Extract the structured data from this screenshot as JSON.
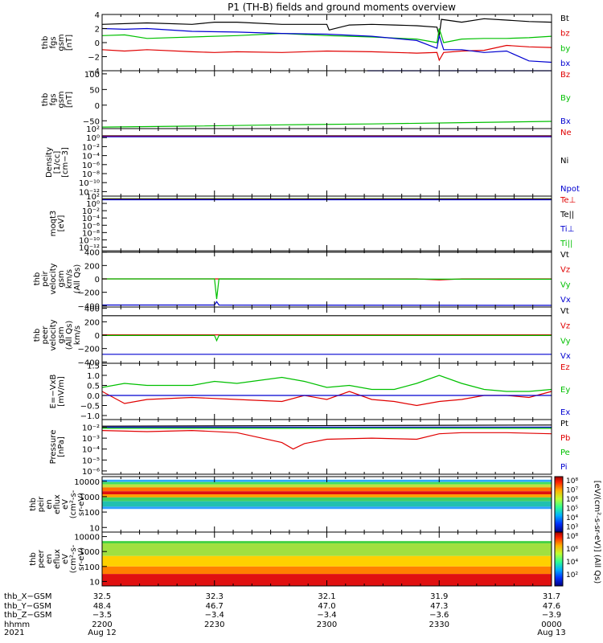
{
  "title": "P1 (TH-B) fields and ground moments overview",
  "chart_data": [
    {
      "type": "line",
      "ylabel": [
        "thb",
        "fgs",
        "gsm",
        "[nT]"
      ],
      "ylim": [
        -4,
        4
      ],
      "yticks": [
        [
          "4",
          4
        ],
        [
          "2",
          2
        ],
        [
          "0",
          0
        ],
        [
          "−2",
          -2
        ],
        [
          "−4",
          -4
        ]
      ],
      "legend": [
        {
          "name": "Bt",
          "color": "#000000"
        },
        {
          "name": "bz",
          "color": "#e00000"
        },
        {
          "name": "by",
          "color": "#00c000"
        },
        {
          "name": "bx",
          "color": "#0000d0"
        }
      ],
      "series": [
        {
          "name": "Bt",
          "color": "#000000",
          "x": [
            0,
            20,
            40,
            50,
            60,
            80,
            100,
            101,
            110,
            120,
            130,
            140,
            149,
            150,
            151,
            160,
            170,
            180,
            190,
            200
          ],
          "y": [
            2.6,
            2.8,
            2.6,
            2.9,
            2.9,
            2.6,
            2.6,
            1.8,
            2.5,
            2.6,
            2.5,
            2.4,
            2.2,
            1.0,
            3.3,
            2.9,
            3.4,
            3.2,
            3.0,
            2.9
          ]
        },
        {
          "name": "bz",
          "color": "#e00000",
          "x": [
            0,
            10,
            20,
            40,
            50,
            60,
            80,
            100,
            120,
            140,
            149,
            150,
            152,
            160,
            170,
            180,
            190,
            200
          ],
          "y": [
            -1.0,
            -1.2,
            -1.0,
            -1.3,
            -1.4,
            -1.3,
            -1.4,
            -1.2,
            -1.3,
            -1.5,
            -1.4,
            -2.5,
            -1.4,
            -1.2,
            -1.1,
            -0.4,
            -0.6,
            -0.7
          ]
        },
        {
          "name": "by",
          "color": "#00c000",
          "x": [
            0,
            10,
            20,
            40,
            60,
            80,
            100,
            120,
            140,
            149,
            150,
            152,
            160,
            170,
            180,
            190,
            200
          ],
          "y": [
            1.0,
            1.1,
            0.6,
            0.8,
            1.0,
            1.3,
            1.0,
            0.8,
            0.5,
            0.0,
            2.0,
            0.0,
            0.5,
            0.6,
            0.6,
            0.7,
            0.9
          ]
        },
        {
          "name": "bx",
          "color": "#0000d0",
          "x": [
            0,
            10,
            20,
            40,
            60,
            80,
            100,
            120,
            140,
            149,
            150,
            152,
            160,
            170,
            180,
            190,
            200
          ],
          "y": [
            2.0,
            1.9,
            2.0,
            1.6,
            1.5,
            1.3,
            1.2,
            0.9,
            0.3,
            -0.8,
            1.0,
            -1.0,
            -1.0,
            -1.4,
            -1.2,
            -2.6,
            -2.8
          ]
        }
      ]
    },
    {
      "type": "line",
      "ylabel": [
        "thb",
        "fgs",
        "gsm",
        "[nT]"
      ],
      "ylim": [
        -75,
        110
      ],
      "yticks": [
        [
          "100",
          100
        ],
        [
          "50",
          50
        ],
        [
          "0",
          0
        ],
        [
          "−50",
          -50
        ]
      ],
      "legend": [
        {
          "name": "Bz",
          "color": "#e00000"
        },
        {
          "name": "By",
          "color": "#00c000"
        },
        {
          "name": "Bx",
          "color": "#0000d0"
        }
      ],
      "series": [
        {
          "name": "Bx",
          "color": "#0000d0",
          "x": [
            118,
            200
          ],
          "y": [
            110,
            110
          ]
        },
        {
          "name": "By",
          "color": "#00c000",
          "x": [
            0,
            40,
            80,
            120,
            160,
            200
          ],
          "y": [
            -70,
            -67,
            -63,
            -60,
            -56,
            -52
          ]
        }
      ]
    },
    {
      "type": "line",
      "ylabel": [
        "Density",
        "[1/cc]",
        "[cm−3]"
      ],
      "ylim": [
        -13,
        2
      ],
      "log": true,
      "ytick_exponents": [
        2,
        0,
        -2,
        -4,
        -6,
        -8,
        -10,
        -12
      ],
      "legend": [
        {
          "name": "Ne",
          "color": "#e00000"
        },
        {
          "name": "Ni",
          "color": "#000000"
        },
        {
          "name": "Npot",
          "color": "#0000d0"
        }
      ],
      "series": [
        {
          "name": "Ni",
          "color": "#000000",
          "x": [
            0,
            200
          ],
          "y": [
            0.4,
            0.4
          ]
        },
        {
          "name": "Ne",
          "color": "#e00000",
          "x": [
            0,
            200
          ],
          "y": [
            0.3,
            0.3
          ]
        },
        {
          "name": "Npot",
          "color": "#0000d0",
          "x": [
            0,
            200
          ],
          "y": [
            0.2,
            0.2
          ]
        }
      ]
    },
    {
      "type": "line",
      "ylabel": [
        "moqt3",
        "[eV]"
      ],
      "ylim": [
        -13,
        2
      ],
      "log": true,
      "ytick_exponents": [
        2,
        0,
        -2,
        -4,
        -6,
        -8,
        -10,
        -12
      ],
      "legend": [
        {
          "name": "Te⊥",
          "color": "#e00000"
        },
        {
          "name": "Te||",
          "color": "#000000"
        },
        {
          "name": "Ti⊥",
          "color": "#0000d0"
        },
        {
          "name": "Ti||",
          "color": "#00c000"
        }
      ],
      "series": [
        {
          "name": "Ti||",
          "color": "#00c000",
          "x": [
            0,
            200
          ],
          "y": [
            1.3,
            1.3
          ]
        },
        {
          "name": "Te||",
          "color": "#000000",
          "x": [
            0,
            200
          ],
          "y": [
            1.2,
            1.2
          ]
        },
        {
          "name": "Te⊥",
          "color": "#e00000",
          "x": [
            0,
            200
          ],
          "y": [
            1.1,
            1.1
          ]
        },
        {
          "name": "Ti⊥",
          "color": "#0000d0",
          "x": [
            0,
            200
          ],
          "y": [
            1.0,
            1.0
          ]
        }
      ]
    },
    {
      "type": "line",
      "ylabel": [
        "thb",
        "peir",
        "velocity",
        "gsm",
        "km/s",
        "(All Qs)"
      ],
      "ylim": [
        -420,
        420
      ],
      "yticks": [
        [
          "400",
          400
        ],
        [
          "200",
          200
        ],
        [
          "0",
          0
        ],
        [
          "−200",
          -200
        ],
        [
          "−400",
          -400
        ]
      ],
      "legend": [
        {
          "name": "Vt",
          "color": "#000000"
        },
        {
          "name": "Vz",
          "color": "#e00000"
        },
        {
          "name": "Vy",
          "color": "#00c000"
        },
        {
          "name": "Vx",
          "color": "#0000d0"
        }
      ],
      "series": [
        {
          "name": "Vt",
          "color": "#000000",
          "x": [
            0,
            200
          ],
          "y": [
            400,
            400
          ]
        },
        {
          "name": "Vz",
          "color": "#e00000",
          "x": [
            0,
            140,
            150,
            160,
            200
          ],
          "y": [
            0,
            0,
            -15,
            0,
            0
          ]
        },
        {
          "name": "Vy",
          "color": "#00c000",
          "x": [
            0,
            50,
            51,
            52,
            200
          ],
          "y": [
            0,
            0,
            -300,
            0,
            -5
          ]
        },
        {
          "name": "Vx",
          "color": "#0000d0",
          "x": [
            0,
            50,
            51,
            52,
            200
          ],
          "y": [
            -390,
            -390,
            -340,
            -390,
            -395
          ]
        }
      ]
    },
    {
      "type": "line",
      "ylabel": [
        "thb",
        "peer",
        "velocity",
        "gsm",
        "(All Qs)",
        "km/s"
      ],
      "ylim": [
        -420,
        420
      ],
      "yticks": [
        [
          "400",
          400
        ],
        [
          "200",
          200
        ],
        [
          "0",
          0
        ],
        [
          "−200",
          -200
        ],
        [
          "−400",
          -400
        ]
      ],
      "legend": [
        {
          "name": "Vt",
          "color": "#000000"
        },
        {
          "name": "Vz",
          "color": "#e00000"
        },
        {
          "name": "Vy",
          "color": "#00c000"
        },
        {
          "name": "Vx",
          "color": "#0000d0"
        }
      ],
      "series": [
        {
          "name": "Vt",
          "color": "#000000",
          "x": [
            0,
            200
          ],
          "y": [
            290,
            290
          ]
        },
        {
          "name": "Vz",
          "color": "#e00000",
          "x": [
            0,
            200
          ],
          "y": [
            5,
            5
          ]
        },
        {
          "name": "Vy",
          "color": "#00c000",
          "x": [
            0,
            50,
            51,
            52,
            200
          ],
          "y": [
            -5,
            -5,
            -80,
            -5,
            -5
          ]
        },
        {
          "name": "Vx",
          "color": "#0000d0",
          "x": [
            0,
            200
          ],
          "y": [
            -285,
            -285
          ]
        }
      ]
    },
    {
      "type": "line",
      "ylabel": [
        "E=−VxB",
        "[mV/m]"
      ],
      "ylim": [
        -1.2,
        1.6
      ],
      "yticks": [
        [
          "1.5",
          1.5
        ],
        [
          "1.0",
          1.0
        ],
        [
          "0.5",
          0.5
        ],
        [
          "0.0",
          0.0
        ],
        [
          "−0.5",
          -0.5
        ],
        [
          "−1.0",
          -1.0
        ]
      ],
      "legend": [
        {
          "name": "Ez",
          "color": "#e00000"
        },
        {
          "name": "Ey",
          "color": "#00c000"
        },
        {
          "name": "Ex",
          "color": "#0000d0"
        }
      ],
      "series": [
        {
          "name": "Ey",
          "color": "#00c000",
          "x": [
            0,
            10,
            20,
            40,
            50,
            60,
            80,
            90,
            100,
            110,
            120,
            130,
            140,
            150,
            160,
            170,
            180,
            190,
            200
          ],
          "y": [
            0.4,
            0.6,
            0.5,
            0.5,
            0.7,
            0.6,
            0.9,
            0.7,
            0.4,
            0.5,
            0.3,
            0.3,
            0.6,
            1.0,
            0.6,
            0.3,
            0.2,
            0.2,
            0.3
          ]
        },
        {
          "name": "Ez",
          "color": "#e00000",
          "x": [
            0,
            10,
            20,
            40,
            60,
            80,
            90,
            100,
            110,
            120,
            130,
            140,
            150,
            160,
            170,
            180,
            190,
            200
          ],
          "y": [
            0.2,
            -0.4,
            -0.2,
            -0.1,
            -0.2,
            -0.3,
            0.0,
            -0.2,
            0.2,
            -0.2,
            -0.3,
            -0.5,
            -0.3,
            -0.2,
            0.0,
            0.0,
            -0.1,
            0.2
          ]
        },
        {
          "name": "Ex",
          "color": "#0000d0",
          "x": [
            0,
            200
          ],
          "y": [
            0.0,
            0.0
          ]
        }
      ]
    },
    {
      "type": "line",
      "ylabel": [
        "Pressure",
        "[nPa]"
      ],
      "ylim": [
        -6.3,
        -1.3
      ],
      "log": true,
      "ytick_exponents": [
        -2,
        -3,
        -4,
        -5,
        -6
      ],
      "legend": [
        {
          "name": "Pt",
          "color": "#000000"
        },
        {
          "name": "Pb",
          "color": "#e00000"
        },
        {
          "name": "Pe",
          "color": "#00c000"
        },
        {
          "name": "Pi",
          "color": "#0000d0"
        }
      ],
      "series": [
        {
          "name": "Pt",
          "color": "#000000",
          "x": [
            0,
            200
          ],
          "y": [
            -1.9,
            -1.8
          ]
        },
        {
          "name": "Pi",
          "color": "#0000d0",
          "x": [
            0,
            200
          ],
          "y": [
            -2.0,
            -2.0
          ]
        },
        {
          "name": "Pe",
          "color": "#00c000",
          "x": [
            0,
            200
          ],
          "y": [
            -2.1,
            -2.1
          ]
        },
        {
          "name": "Pb",
          "color": "#e00000",
          "x": [
            0,
            20,
            40,
            60,
            80,
            85,
            90,
            100,
            120,
            140,
            150,
            160,
            180,
            200
          ],
          "y": [
            -2.3,
            -2.4,
            -2.3,
            -2.5,
            -3.4,
            -4.0,
            -3.5,
            -3.1,
            -3.0,
            -3.1,
            -2.6,
            -2.5,
            -2.5,
            -2.6
          ]
        }
      ]
    },
    {
      "type": "heatmap",
      "ylabel": [
        "thb",
        "peir",
        "en",
        "eflux",
        "eV",
        "(cm²-s-",
        "sr-eV)"
      ],
      "ylim_log": [
        0.7,
        4.3
      ],
      "ytick_labels": [
        [
          "10000",
          4
        ],
        [
          "1000",
          3
        ],
        [
          "100",
          2
        ],
        [
          "10",
          1
        ]
      ],
      "bands": [
        [
          3.95,
          4.1,
          "#30a8ff"
        ],
        [
          3.8,
          3.95,
          "#40e060"
        ],
        [
          3.6,
          3.8,
          "#c0e040"
        ],
        [
          3.35,
          3.6,
          "#ff7000"
        ],
        [
          3.15,
          3.35,
          "#e01010"
        ],
        [
          2.95,
          3.15,
          "#ffa000"
        ],
        [
          2.7,
          2.95,
          "#40d060"
        ],
        [
          2.35,
          2.7,
          "#20c0b0"
        ],
        [
          2.2,
          2.35,
          "#30a0ff"
        ]
      ]
    },
    {
      "type": "heatmap",
      "ylabel": [
        "thb",
        "peer",
        "en",
        "eflux",
        "eV",
        "(cm²-s-",
        "sr-eV)"
      ],
      "ylim_log": [
        0.7,
        4.3
      ],
      "ytick_labels": [
        [
          "10000",
          4
        ],
        [
          "1000",
          3
        ],
        [
          "100",
          2
        ],
        [
          "10",
          1
        ]
      ],
      "bands": [
        [
          3.55,
          3.7,
          "#40d040"
        ],
        [
          2.7,
          3.55,
          "#a0e040"
        ],
        [
          2.0,
          2.7,
          "#ffd000"
        ],
        [
          1.5,
          2.0,
          "#ff8000"
        ],
        [
          0.7,
          1.5,
          "#e01010"
        ]
      ]
    }
  ],
  "colorbar": {
    "label": "[eV/(cm²-s-sr-eV)] (All Qs)",
    "upper_ticks": [
      "10⁸",
      "10⁷",
      "10⁶",
      "10⁵",
      "10⁴",
      "10³"
    ],
    "lower_ticks": [
      "10⁸",
      "10⁶",
      "10⁴",
      "10²"
    ]
  },
  "x_axis": {
    "range_minutes": [
      0,
      120
    ],
    "ticks": [
      {
        "t": 0,
        "vals": [
          "32.5",
          "48.4",
          "−3.5",
          "2200",
          "Aug 12"
        ]
      },
      {
        "t": 30,
        "vals": [
          "32.3",
          "46.7",
          "−3.4",
          "2230",
          ""
        ]
      },
      {
        "t": 60,
        "vals": [
          "32.1",
          "47.0",
          "−3.4",
          "2300",
          ""
        ]
      },
      {
        "t": 90,
        "vals": [
          "31.9",
          "47.3",
          "−3.6",
          "2330",
          ""
        ]
      },
      {
        "t": 120,
        "vals": [
          "31.7",
          "47.6",
          "−3.9",
          "0000",
          "Aug 13"
        ]
      }
    ],
    "row_labels": [
      "thb_X−GSM",
      "thb_Y−GSM",
      "thb_Z−GSM",
      "hhmm",
      "2021"
    ]
  }
}
